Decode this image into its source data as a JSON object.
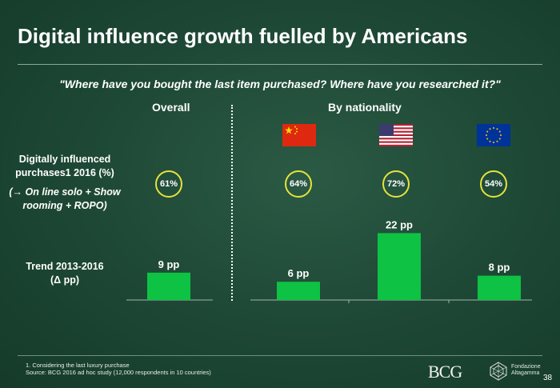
{
  "title": "Digital influence growth fuelled by Americans",
  "subtitle": "\"Where have you bought the last item purchased? Where have you researched it?\"",
  "sections": {
    "overall": "Overall",
    "by_nationality": "By nationality"
  },
  "row1": {
    "line1": "Digitally influenced",
    "line2": "purchases1 2016 (%)",
    "note_arrow": "(→",
    "note_line1": "On line solo + Show",
    "note_line2": "rooming + ROPO)"
  },
  "row2": {
    "line1": "Trend 2013-2016",
    "line2": "(Δ pp)"
  },
  "flags": [
    "china-flag",
    "usa-flag",
    "eu-flag"
  ],
  "colors": {
    "bar": "#0ec244",
    "circle_border": "#e6e23c"
  },
  "chart_data": {
    "type": "bar",
    "title": "Digital influence growth fuelled by Americans",
    "categories": [
      "Overall",
      "China",
      "USA",
      "EU"
    ],
    "digitally_influenced_pct": [
      61,
      64,
      72,
      54
    ],
    "digitally_influenced_labels": [
      "61%",
      "64%",
      "72%",
      "54%"
    ],
    "trend_pp": [
      9,
      6,
      22,
      8
    ],
    "trend_labels": [
      "9 pp",
      "6 pp",
      "22 pp",
      "8 pp"
    ],
    "ylabel": "Trend 2013-2016 (Δ pp)",
    "ylim": [
      0,
      22
    ]
  },
  "footnote": {
    "line1": "1. Considering the last luxury purchase",
    "line2": "Source: BCG 2016 ad hoc study (12,000 respondents in 10 countries)"
  },
  "logos": {
    "bcg": "BCG",
    "partner_line1": "Fondazione",
    "partner_line2": "Altagamma"
  },
  "page_number": "38"
}
